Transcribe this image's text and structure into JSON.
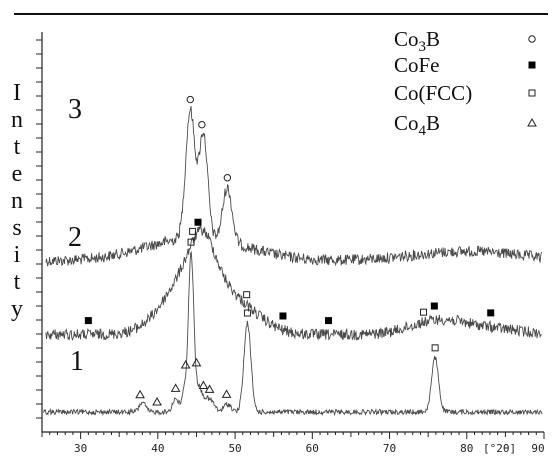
{
  "chart_data": {
    "type": "line",
    "title": "",
    "xlabel": "",
    "ylabel": "Intensity",
    "x_unit_label": "[°2θ]",
    "xlim": [
      25,
      90
    ],
    "x_ticks": [
      30,
      40,
      50,
      60,
      70,
      80,
      90
    ],
    "legend": {
      "placement": "top-right",
      "entries": [
        {
          "label_main": "Co",
          "label_sub": "3",
          "label_end": "B",
          "marker": "open-circle"
        },
        {
          "label_main": "CoFe",
          "label_sub": "",
          "label_end": "",
          "marker": "filled-square"
        },
        {
          "label_main": "Co(FCC)",
          "label_sub": "",
          "label_end": "",
          "marker": "open-square"
        },
        {
          "label_main": "Co",
          "label_sub": "4",
          "label_end": "B",
          "marker": "open-triangle"
        }
      ]
    },
    "series": [
      {
        "name": "3",
        "baseline": 0.78,
        "peaks": [
          [
            44.2,
            0.66,
            0.6
          ],
          [
            45.9,
            0.54,
            0.55
          ],
          [
            49.0,
            0.28,
            0.6
          ],
          [
            45.0,
            0.12,
            6.5
          ],
          [
            80.0,
            0.05,
            7.0
          ]
        ],
        "markers": [
          {
            "x": 44.2,
            "type": "open-circle"
          },
          {
            "x": 45.7,
            "type": "open-circle"
          },
          {
            "x": 49.0,
            "type": "open-circle"
          }
        ]
      },
      {
        "name": "2",
        "baseline": 0.4,
        "peaks": [
          [
            44.8,
            0.35,
            3.5
          ],
          [
            45.8,
            0.18,
            1.5
          ],
          [
            51.0,
            0.1,
            3.0
          ],
          [
            76.2,
            0.07,
            3.5
          ],
          [
            83.0,
            0.03,
            4.0
          ]
        ],
        "markers": [
          {
            "x": 44.5,
            "type": "open-square"
          },
          {
            "x": 45.2,
            "type": "filled-square"
          },
          {
            "x": 31.0,
            "type": "filled-square"
          },
          {
            "x": 51.5,
            "type": "open-square"
          },
          {
            "x": 56.2,
            "type": "filled-square"
          },
          {
            "x": 62.1,
            "type": "filled-square"
          },
          {
            "x": 74.4,
            "type": "open-square"
          },
          {
            "x": 75.8,
            "type": "filled-square"
          },
          {
            "x": 83.1,
            "type": "filled-square"
          }
        ]
      },
      {
        "name": "1",
        "baseline": 0.0,
        "peaks": [
          [
            44.3,
            0.82,
            0.35
          ],
          [
            51.6,
            0.46,
            0.45
          ],
          [
            75.9,
            0.28,
            0.45
          ],
          [
            38.0,
            0.05,
            0.4
          ],
          [
            42.3,
            0.07,
            0.4
          ],
          [
            43.4,
            0.1,
            0.3
          ],
          [
            45.3,
            0.12,
            0.4
          ],
          [
            46.2,
            0.06,
            0.4
          ],
          [
            47.0,
            0.05,
            0.4
          ],
          [
            49.0,
            0.04,
            0.5
          ]
        ],
        "markers": [
          {
            "x": 44.3,
            "type": "open-square"
          },
          {
            "x": 51.6,
            "type": "open-square"
          },
          {
            "x": 75.9,
            "type": "open-square"
          },
          {
            "x": 37.7,
            "type": "open-triangle"
          },
          {
            "x": 39.9,
            "type": "open-triangle"
          },
          {
            "x": 42.3,
            "type": "open-triangle"
          },
          {
            "x": 43.6,
            "type": "open-triangle"
          },
          {
            "x": 45.0,
            "type": "open-triangle"
          },
          {
            "x": 45.9,
            "type": "open-triangle"
          },
          {
            "x": 46.7,
            "type": "open-triangle"
          },
          {
            "x": 48.9,
            "type": "open-triangle"
          }
        ]
      }
    ],
    "colors": {
      "curve": "#4a4a4a",
      "axis": "#222222",
      "marker": "#222222"
    }
  }
}
